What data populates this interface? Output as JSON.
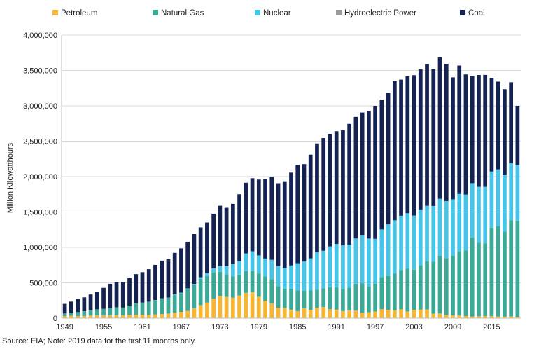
{
  "chart_data": {
    "type": "bar",
    "stacked": true,
    "title": "",
    "xlabel": "",
    "ylabel": "Million Kilowatthours",
    "ylim": [
      0,
      4000000
    ],
    "yticks": [
      "0",
      "500,000",
      "1,000,000",
      "1,500,000",
      "2,000,000",
      "2,500,000",
      "3,000,000",
      "3,500,000",
      "4,000,000"
    ],
    "x_tick_labels": [
      "1949",
      "1955",
      "1961",
      "1967",
      "1973",
      "1979",
      "1985",
      "1991",
      "1997",
      "2003",
      "2009",
      "2015"
    ],
    "categories": [
      1949,
      1950,
      1951,
      1952,
      1953,
      1954,
      1955,
      1956,
      1957,
      1958,
      1959,
      1960,
      1961,
      1962,
      1963,
      1964,
      1965,
      1966,
      1967,
      1968,
      1969,
      1970,
      1971,
      1972,
      1973,
      1974,
      1975,
      1976,
      1977,
      1978,
      1979,
      1980,
      1981,
      1982,
      1983,
      1984,
      1985,
      1986,
      1987,
      1988,
      1989,
      1990,
      1991,
      1992,
      1993,
      1994,
      1995,
      1996,
      1997,
      1998,
      1999,
      2000,
      2001,
      2002,
      2003,
      2004,
      2005,
      2006,
      2007,
      2008,
      2009,
      2010,
      2011,
      2012,
      2013,
      2014,
      2015,
      2016,
      2017,
      2018,
      2019
    ],
    "legend_position": "top",
    "series": [
      {
        "name": "Petroleum",
        "color": "#F6B634",
        "values": [
          29000,
          34000,
          29000,
          30000,
          37000,
          37000,
          37000,
          38000,
          40000,
          40000,
          47000,
          48000,
          49000,
          47000,
          52000,
          57000,
          65000,
          79000,
          89000,
          104000,
          138000,
          184000,
          220000,
          274000,
          314000,
          301000,
          289000,
          320000,
          358000,
          365000,
          303000,
          246000,
          206000,
          147000,
          144000,
          120000,
          100000,
          137000,
          118000,
          149000,
          158000,
          127000,
          120000,
          100000,
          112000,
          106000,
          75000,
          82000,
          93000,
          128000,
          118000,
          111000,
          125000,
          95000,
          119000,
          121000,
          122000,
          64000,
          66000,
          46000,
          39000,
          37000,
          30000,
          23000,
          27000,
          30000,
          28000,
          24000,
          21000,
          25000,
          18000
        ]
      },
      {
        "name": "Natural Gas",
        "color": "#3AA996",
        "values": [
          37000,
          45000,
          57000,
          68000,
          76000,
          88000,
          95000,
          104000,
          114000,
          110000,
          129000,
          158000,
          169000,
          184000,
          202000,
          220000,
          222000,
          251000,
          264000,
          304000,
          333000,
          373000,
          375000,
          376000,
          341000,
          320000,
          300000,
          295000,
          306000,
          305000,
          329000,
          346000,
          346000,
          305000,
          274000,
          297000,
          292000,
          249000,
          273000,
          253000,
          266000,
          310000,
          315000,
          310000,
          318000,
          380000,
          419000,
          368000,
          399000,
          452000,
          479000,
          518000,
          553000,
          607000,
          567000,
          627000,
          683000,
          734000,
          814000,
          802000,
          841000,
          910000,
          926000,
          1115000,
          1039000,
          1028000,
          1247000,
          1273000,
          1203000,
          1356000,
          1356000
        ]
      },
      {
        "name": "Nuclear",
        "color": "#45C5EA",
        "values": [
          0,
          0,
          0,
          0,
          0,
          0,
          0,
          0,
          0,
          0,
          0,
          1000,
          2000,
          2000,
          3000,
          3000,
          4000,
          6000,
          8000,
          13000,
          14000,
          22000,
          38000,
          54000,
          83000,
          114000,
          173000,
          191000,
          251000,
          276000,
          255000,
          251000,
          273000,
          283000,
          294000,
          328000,
          384000,
          414000,
          455000,
          527000,
          529000,
          577000,
          613000,
          619000,
          610000,
          640000,
          673000,
          675000,
          629000,
          674000,
          728000,
          754000,
          769000,
          780000,
          764000,
          788000,
          782000,
          787000,
          806000,
          806000,
          799000,
          807000,
          790000,
          769000,
          789000,
          797000,
          797000,
          806000,
          805000,
          807000,
          790000
        ]
      },
      {
        "name": "Hydroelectric Power",
        "color": "#9A9A9A",
        "values": [
          0,
          0,
          0,
          0,
          0,
          0,
          0,
          0,
          0,
          0,
          0,
          0,
          0,
          0,
          0,
          0,
          0,
          0,
          0,
          0,
          0,
          0,
          0,
          0,
          0,
          0,
          0,
          0,
          0,
          0,
          0,
          0,
          0,
          0,
          0,
          0,
          0,
          0,
          0,
          0,
          0,
          0,
          0,
          0,
          0,
          0,
          0,
          0,
          0,
          0,
          0,
          0,
          0,
          0,
          0,
          0,
          0,
          0,
          0,
          0,
          0,
          0,
          0,
          0,
          0,
          0,
          0,
          0,
          0,
          0,
          0
        ]
      },
      {
        "name": "Coal",
        "color": "#142352",
        "values": [
          136000,
          155000,
          186000,
          196000,
          222000,
          250000,
          296000,
          344000,
          355000,
          364000,
          391000,
          415000,
          430000,
          459000,
          496000,
          533000,
          543000,
          587000,
          625000,
          659000,
          703000,
          704000,
          718000,
          772000,
          850000,
          824000,
          853000,
          944000,
          998000,
          1031000,
          1071000,
          1123000,
          1172000,
          1171000,
          1222000,
          1311000,
          1392000,
          1376000,
          1464000,
          1539000,
          1591000,
          1590000,
          1593000,
          1625000,
          1705000,
          1717000,
          1738000,
          1805000,
          1879000,
          1834000,
          1860000,
          1966000,
          1923000,
          1934000,
          1983000,
          1978000,
          2002000,
          1935000,
          1997000,
          1939000,
          1723000,
          1815000,
          1697000,
          1513000,
          1581000,
          1582000,
          1322000,
          1239000,
          1206000,
          1145000,
          836000
        ]
      }
    ]
  },
  "footer": {
    "source": "Source: EIA; Note: 2019 data for the first 11 months only."
  }
}
